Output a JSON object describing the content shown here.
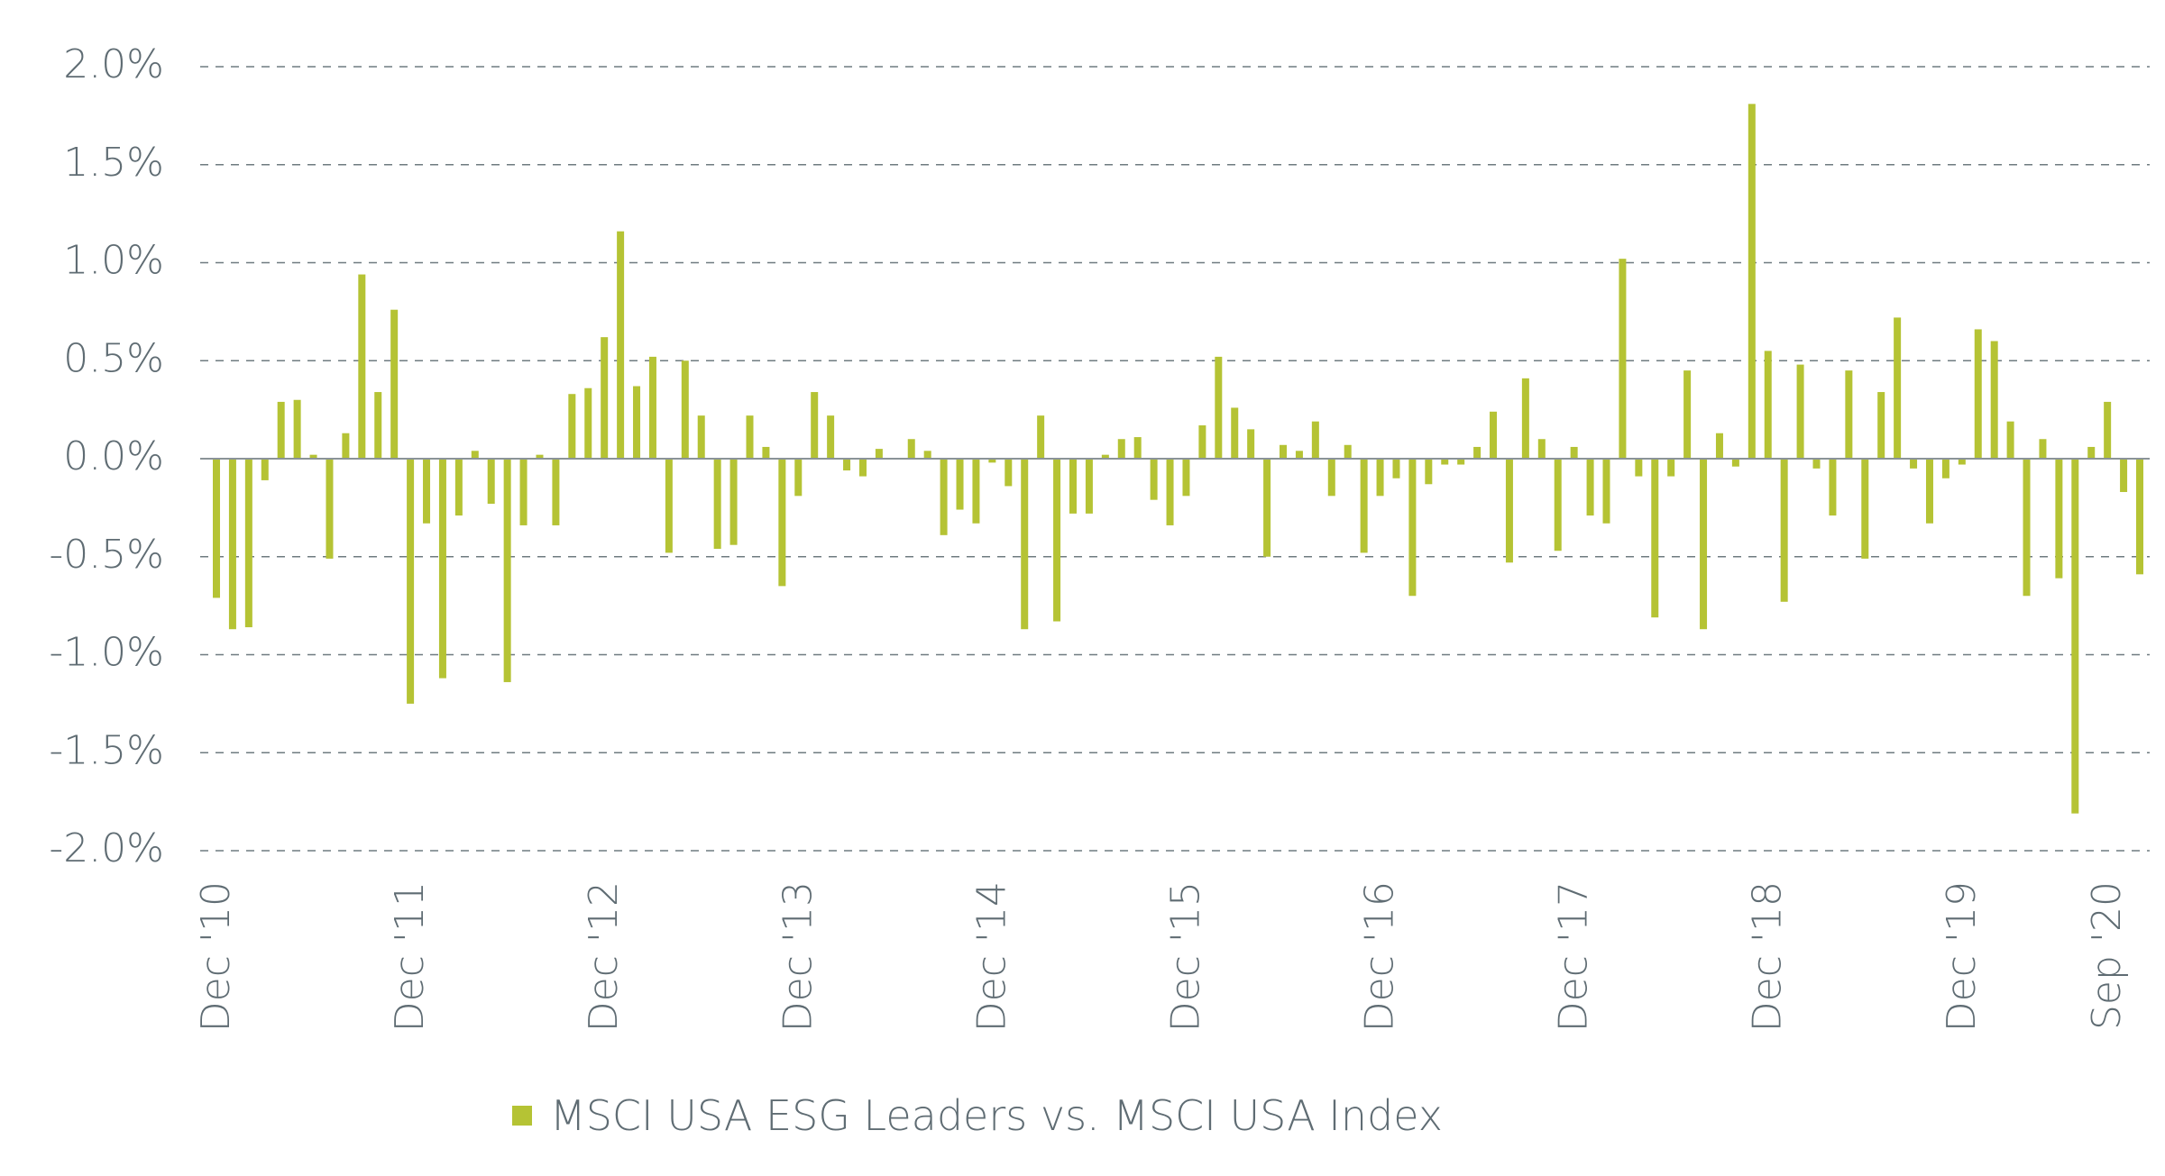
{
  "colors": {
    "bar": "#b5c334",
    "text": "#5f6c73",
    "grid": "#6f7b80",
    "zero_line": "#8a9398"
  },
  "legend": {
    "label": "MSCI USA ESG Leaders vs. MSCI USA Index"
  },
  "chart_data": {
    "type": "bar",
    "title": "",
    "xlabel": "",
    "ylabel": "",
    "ylim": [
      -2.0,
      2.0
    ],
    "grid": "dashed horizontal",
    "legend_position": "bottom",
    "y_ticks": [
      "2.0%",
      "1.5%",
      "1.0%",
      "0.5%",
      "0.0%",
      "-0.5%",
      "-1.0%",
      "-1.5%",
      "-2.0%"
    ],
    "y_tick_values": [
      2.0,
      1.5,
      1.0,
      0.5,
      0.0,
      -0.5,
      -1.0,
      -1.5,
      -2.0
    ],
    "x_tick_labels": [
      {
        "label": "Dec '10",
        "index": 0
      },
      {
        "label": "Dec '11",
        "index": 12
      },
      {
        "label": "Dec '12",
        "index": 24
      },
      {
        "label": "Dec '13",
        "index": 36
      },
      {
        "label": "Dec '14",
        "index": 48
      },
      {
        "label": "Dec '15",
        "index": 60
      },
      {
        "label": "Dec '16",
        "index": 72
      },
      {
        "label": "Dec '17",
        "index": 84
      },
      {
        "label": "Dec '18",
        "index": 96
      },
      {
        "label": "Dec '19",
        "index": 108
      },
      {
        "label": "Sep '20",
        "index": 117
      }
    ],
    "series": [
      {
        "name": "MSCI USA ESG Leaders vs. MSCI USA Index",
        "values": [
          -0.71,
          -0.87,
          -0.86,
          -0.11,
          0.29,
          0.3,
          0.02,
          -0.51,
          0.13,
          0.94,
          0.34,
          0.76,
          -1.25,
          -0.33,
          -1.12,
          -0.29,
          0.04,
          -0.23,
          -1.14,
          -0.34,
          0.02,
          -0.34,
          0.33,
          0.36,
          0.62,
          1.16,
          0.37,
          0.52,
          -0.48,
          0.5,
          0.22,
          -0.46,
          -0.44,
          0.22,
          0.06,
          -0.65,
          -0.19,
          0.34,
          0.22,
          -0.06,
          -0.09,
          0.05,
          0.0,
          0.1,
          0.04,
          -0.39,
          -0.26,
          -0.33,
          -0.02,
          -0.14,
          -0.87,
          0.22,
          -0.83,
          -0.28,
          -0.28,
          0.02,
          0.1,
          0.11,
          -0.21,
          -0.34,
          -0.19,
          0.17,
          0.52,
          0.26,
          0.15,
          -0.5,
          0.07,
          0.04,
          0.19,
          -0.19,
          0.07,
          -0.48,
          -0.19,
          -0.1,
          -0.7,
          -0.13,
          -0.03,
          -0.03,
          0.06,
          0.24,
          -0.53,
          0.41,
          0.1,
          -0.47,
          0.06,
          -0.29,
          -0.33,
          1.02,
          -0.09,
          -0.81,
          -0.09,
          0.45,
          -0.87,
          0.13,
          -0.04,
          1.81,
          0.55,
          -0.73,
          0.48,
          -0.05,
          -0.29,
          0.45,
          -0.51,
          0.34,
          0.72,
          -0.05,
          -0.33,
          -0.1,
          -0.03,
          0.66,
          0.6,
          0.19,
          -0.7,
          0.1,
          -0.61,
          -1.81,
          0.06,
          0.29,
          -0.17,
          -0.59
        ]
      }
    ]
  }
}
